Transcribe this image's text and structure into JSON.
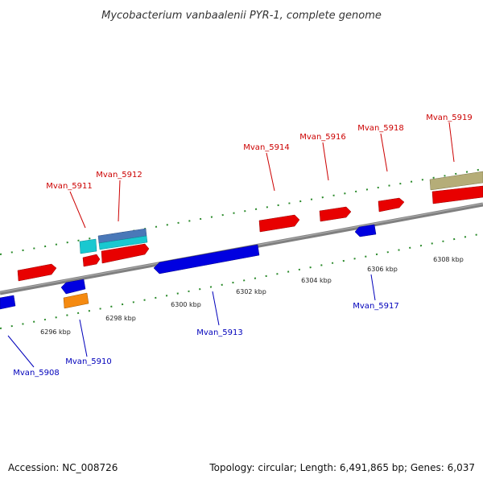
{
  "title": "Mycobacterium vanbaalenii PYR-1, complete genome",
  "footer": {
    "accession": "Accession: NC_008726",
    "topology": "Topology: circular; Length: 6,491,865 bp; Genes: 6,037"
  },
  "colors": {
    "forward_label": "#cc0000",
    "reverse_label": "#0000bb",
    "backbone": "#808080",
    "tick": "#2a8a2a"
  },
  "scale_ticks": [
    {
      "label": "6296 kbp"
    },
    {
      "label": "6298 kbp"
    },
    {
      "label": "6300 kbp"
    },
    {
      "label": "6302 kbp"
    },
    {
      "label": "6304 kbp"
    },
    {
      "label": "6306 kbp"
    },
    {
      "label": "6308 kbp"
    }
  ],
  "gene_labels": [
    {
      "text": "Mvan_5908",
      "strand": "reverse"
    },
    {
      "text": "Mvan_5910",
      "strand": "reverse"
    },
    {
      "text": "Mvan_5911",
      "strand": "forward"
    },
    {
      "text": "Mvan_5912",
      "strand": "forward"
    },
    {
      "text": "Mvan_5913",
      "strand": "reverse"
    },
    {
      "text": "Mvan_5914",
      "strand": "forward"
    },
    {
      "text": "Mvan_5916",
      "strand": "forward"
    },
    {
      "text": "Mvan_5917",
      "strand": "reverse"
    },
    {
      "text": "Mvan_5918",
      "strand": "forward"
    },
    {
      "text": "Mvan_5919",
      "strand": "forward"
    }
  ]
}
